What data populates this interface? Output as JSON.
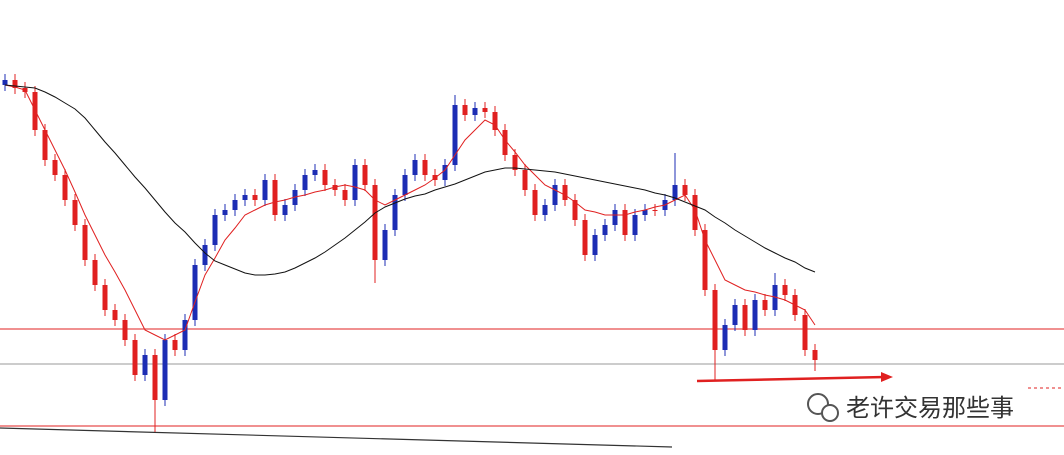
{
  "chart_data": {
    "type": "candlestick",
    "xlim": [
      -0.5,
      105.9
    ],
    "ylim": [
      0,
      455
    ],
    "up_color": "#1c2db4",
    "down_color": "#e02020",
    "open": [
      370,
      375,
      367,
      363,
      325,
      295,
      280,
      255,
      230,
      195,
      170,
      145,
      135,
      115,
      80,
      100,
      55,
      115,
      105,
      135,
      190,
      210,
      240,
      245,
      255,
      260,
      255,
      275,
      240,
      250,
      265,
      280,
      285,
      270,
      265,
      255,
      290,
      270,
      195,
      225,
      260,
      280,
      295,
      280,
      275,
      290,
      350,
      340,
      347,
      343,
      325,
      300,
      285,
      265,
      240,
      250,
      270,
      255,
      235,
      200,
      220,
      230,
      245,
      220,
      240,
      245,
      245,
      255,
      270,
      260,
      225,
      165,
      105,
      130,
      150,
      125,
      155,
      145,
      170,
      160,
      140,
      105
    ],
    "high": [
      381,
      381,
      373,
      369,
      331,
      301,
      286,
      261,
      236,
      201,
      176,
      151,
      141,
      121,
      106,
      106,
      121,
      121,
      141,
      196,
      216,
      246,
      251,
      261,
      266,
      266,
      281,
      281,
      256,
      271,
      286,
      291,
      291,
      276,
      271,
      296,
      296,
      276,
      231,
      266,
      286,
      301,
      301,
      286,
      296,
      360,
      356,
      353,
      353,
      349,
      331,
      306,
      291,
      271,
      256,
      276,
      276,
      261,
      241,
      226,
      236,
      251,
      251,
      246,
      251,
      251,
      261,
      302,
      276,
      266,
      231,
      171,
      136,
      156,
      156,
      161,
      161,
      182,
      176,
      166,
      146,
      111
    ],
    "low": [
      364,
      361,
      357,
      319,
      289,
      274,
      249,
      224,
      189,
      164,
      139,
      129,
      109,
      74,
      74,
      23,
      49,
      99,
      99,
      129,
      184,
      204,
      234,
      239,
      249,
      249,
      249,
      234,
      234,
      244,
      259,
      274,
      264,
      259,
      249,
      249,
      264,
      172,
      189,
      219,
      254,
      274,
      274,
      269,
      269,
      284,
      334,
      334,
      337,
      319,
      294,
      279,
      259,
      234,
      234,
      244,
      249,
      229,
      194,
      194,
      214,
      224,
      214,
      214,
      234,
      239,
      239,
      249,
      254,
      219,
      159,
      75,
      99,
      124,
      119,
      119,
      139,
      139,
      154,
      134,
      99,
      84
    ],
    "close": [
      375,
      367,
      363,
      325,
      295,
      280,
      255,
      230,
      195,
      170,
      145,
      135,
      115,
      80,
      100,
      55,
      115,
      105,
      135,
      190,
      210,
      240,
      245,
      255,
      260,
      255,
      275,
      240,
      250,
      265,
      280,
      285,
      270,
      265,
      255,
      290,
      270,
      195,
      225,
      260,
      280,
      295,
      280,
      275,
      290,
      350,
      340,
      347,
      343,
      325,
      300,
      285,
      265,
      240,
      250,
      270,
      255,
      235,
      200,
      220,
      230,
      245,
      220,
      240,
      245,
      245,
      255,
      270,
      260,
      225,
      165,
      105,
      130,
      150,
      125,
      155,
      145,
      170,
      160,
      140,
      105,
      95
    ],
    "series": [
      {
        "color": "#e02020",
        "values": [
          370,
          368,
          365,
          345,
          325,
          305,
          285,
          263,
          240,
          220,
          200,
          183,
          165,
          145,
          125,
          120,
          115,
          120,
          125,
          153,
          180,
          197,
          215,
          227,
          240,
          245,
          250,
          253,
          255,
          258,
          260,
          263,
          265,
          268,
          270,
          268,
          265,
          255,
          250,
          255,
          260,
          265,
          270,
          277,
          285,
          300,
          315,
          325,
          335,
          330,
          315,
          303,
          290,
          280,
          270,
          265,
          260,
          253,
          245,
          243,
          240,
          240,
          240,
          243,
          245,
          248,
          250,
          255,
          260,
          245,
          215,
          195,
          175,
          170,
          165,
          163,
          160,
          158,
          155,
          150,
          145,
          130
        ]
      },
      {
        "color": "#111111",
        "values": [
          370,
          369,
          368,
          367,
          363,
          358,
          352,
          346,
          337,
          325,
          313,
          302,
          290,
          278,
          267,
          255,
          243,
          232,
          223,
          212,
          202,
          194,
          190,
          186,
          182,
          180,
          180,
          181,
          183,
          187,
          192,
          197,
          203,
          210,
          217,
          225,
          233,
          242,
          248,
          252,
          256,
          259,
          261,
          265,
          268,
          271,
          275,
          279,
          283,
          285,
          287,
          287,
          286,
          285,
          284,
          283,
          281,
          279,
          277,
          275,
          273,
          271,
          269,
          267,
          265,
          262,
          260,
          257,
          253,
          249,
          245,
          238,
          232,
          225,
          219,
          213,
          207,
          202,
          197,
          193,
          187,
          183
        ]
      }
    ],
    "levels": [
      {
        "value": 126,
        "color": "#e02020"
      },
      {
        "value": 91,
        "color": "#999999"
      },
      {
        "value": 29,
        "color": "#e02020"
      },
      {
        "value": 67,
        "color": "#e02020",
        "dashed": true
      }
    ],
    "trendline": {
      "x": [
        -0.5,
        66.7
      ],
      "values": [
        27,
        8
      ],
      "color": "#333333"
    },
    "arrow": {
      "x": [
        69.2,
        88.8
      ],
      "values": [
        74,
        78
      ],
      "color": "#e02020"
    },
    "watermark": "老许交易那些事"
  }
}
